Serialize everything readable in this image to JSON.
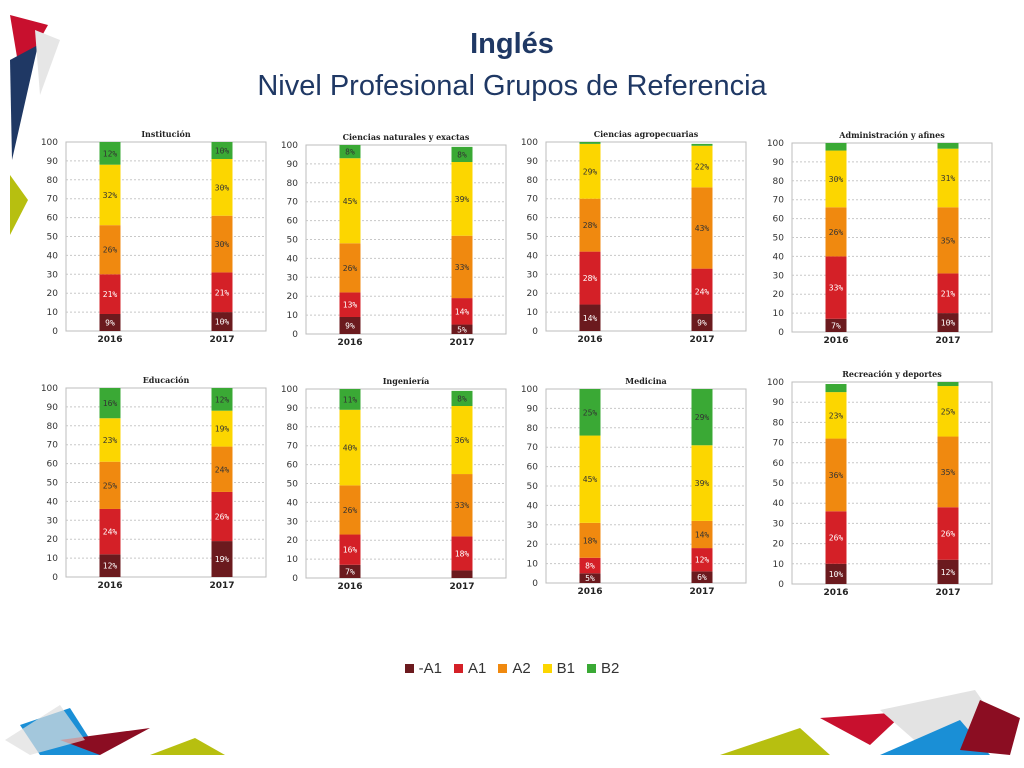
{
  "page": {
    "title": "Inglés",
    "subtitle": "Nivel Profesional Grupos de Referencia"
  },
  "colors": {
    "menos_a1": "#6b1a1e",
    "a1": "#d42027",
    "a2": "#f0890f",
    "b1": "#fcd600",
    "b2": "#3aa935"
  },
  "legend": [
    {
      "label": "-A1",
      "color": "#6b1a1e"
    },
    {
      "label": "A1",
      "color": "#d42027"
    },
    {
      "label": "A2",
      "color": "#f0890f"
    },
    {
      "label": "B1",
      "color": "#fcd600"
    },
    {
      "label": "B2",
      "color": "#3aa935"
    }
  ],
  "chart_data": [
    {
      "type": "bar",
      "stacked": true,
      "title": "Institución",
      "categories": [
        "2016",
        "2017"
      ],
      "ylim": [
        0,
        100
      ],
      "yticks": [
        "0",
        "10",
        "20",
        "30",
        "40",
        "50",
        "60",
        "70",
        "80",
        "90",
        "100"
      ],
      "series": [
        {
          "name": "-A1",
          "values": [
            9,
            10
          ],
          "labels": [
            "9%",
            "10%"
          ]
        },
        {
          "name": "A1",
          "values": [
            21,
            21
          ],
          "labels": [
            "21%",
            "21%"
          ]
        },
        {
          "name": "A2",
          "values": [
            26,
            30
          ],
          "labels": [
            "26%",
            "30%"
          ]
        },
        {
          "name": "B1",
          "values": [
            32,
            30
          ],
          "labels": [
            "32%",
            "30%"
          ]
        },
        {
          "name": "B2",
          "values": [
            12,
            10
          ],
          "labels": [
            "12%",
            "10%"
          ]
        }
      ]
    },
    {
      "type": "bar",
      "stacked": true,
      "title": "Ciencias naturales y exactas",
      "categories": [
        "2016",
        "2017"
      ],
      "ylim": [
        0,
        100
      ],
      "yticks": [
        "0",
        "10",
        "20",
        "30",
        "40",
        "50",
        "60",
        "70",
        "80",
        "90",
        "100"
      ],
      "series": [
        {
          "name": "-A1",
          "values": [
            9,
            5
          ],
          "labels": [
            "9%",
            "5%"
          ]
        },
        {
          "name": "A1",
          "values": [
            13,
            14
          ],
          "labels": [
            "13%",
            "14%"
          ]
        },
        {
          "name": "A2",
          "values": [
            26,
            33
          ],
          "labels": [
            "26%",
            "33%"
          ]
        },
        {
          "name": "B1",
          "values": [
            45,
            39
          ],
          "labels": [
            "45%",
            "39%"
          ]
        },
        {
          "name": "B2",
          "values": [
            8,
            8
          ],
          "labels": [
            "8%",
            "8%"
          ]
        }
      ]
    },
    {
      "type": "bar",
      "stacked": true,
      "title": "Ciencias agropecuarias",
      "categories": [
        "2016",
        "2017"
      ],
      "ylim": [
        0,
        100
      ],
      "yticks": [
        "0",
        "10",
        "20",
        "30",
        "40",
        "50",
        "60",
        "70",
        "80",
        "90",
        "100"
      ],
      "series": [
        {
          "name": "-A1",
          "values": [
            14,
            9
          ],
          "labels": [
            "14%",
            "9%"
          ]
        },
        {
          "name": "A1",
          "values": [
            28,
            24
          ],
          "labels": [
            "28%",
            "24%"
          ]
        },
        {
          "name": "A2",
          "values": [
            28,
            43
          ],
          "labels": [
            "28%",
            "43%"
          ]
        },
        {
          "name": "B1",
          "values": [
            29,
            22
          ],
          "labels": [
            "29%",
            "22%"
          ]
        },
        {
          "name": "B2",
          "values": [
            1,
            1
          ],
          "labels": [
            "",
            ""
          ]
        }
      ]
    },
    {
      "type": "bar",
      "stacked": true,
      "title": "Administración y afines",
      "categories": [
        "2016",
        "2017"
      ],
      "ylim": [
        0,
        100
      ],
      "yticks": [
        "0",
        "10",
        "20",
        "30",
        "40",
        "50",
        "60",
        "70",
        "80",
        "90",
        "100"
      ],
      "series": [
        {
          "name": "-A1",
          "values": [
            7,
            10
          ],
          "labels": [
            "7%",
            "10%"
          ]
        },
        {
          "name": "A1",
          "values": [
            33,
            21
          ],
          "labels": [
            "33%",
            "21%"
          ]
        },
        {
          "name": "A2",
          "values": [
            26,
            35
          ],
          "labels": [
            "26%",
            "35%"
          ]
        },
        {
          "name": "B1",
          "values": [
            30,
            31
          ],
          "labels": [
            "30%",
            "31%"
          ]
        },
        {
          "name": "B2",
          "values": [
            4,
            3
          ],
          "labels": [
            "",
            ""
          ]
        }
      ]
    },
    {
      "type": "bar",
      "stacked": true,
      "title": "Educación",
      "categories": [
        "2016",
        "2017"
      ],
      "ylim": [
        0,
        100
      ],
      "yticks": [
        "0",
        "10",
        "20",
        "30",
        "40",
        "50",
        "60",
        "70",
        "80",
        "90",
        "100"
      ],
      "series": [
        {
          "name": "-A1",
          "values": [
            12,
            19
          ],
          "labels": [
            "12%",
            "19%"
          ]
        },
        {
          "name": "A1",
          "values": [
            24,
            26
          ],
          "labels": [
            "24%",
            "26%"
          ]
        },
        {
          "name": "A2",
          "values": [
            25,
            24
          ],
          "labels": [
            "25%",
            "24%"
          ]
        },
        {
          "name": "B1",
          "values": [
            23,
            19
          ],
          "labels": [
            "23%",
            "19%"
          ]
        },
        {
          "name": "B2",
          "values": [
            16,
            12
          ],
          "labels": [
            "16%",
            "12%"
          ]
        }
      ]
    },
    {
      "type": "bar",
      "stacked": true,
      "title": "Ingeniería",
      "categories": [
        "2016",
        "2017"
      ],
      "ylim": [
        0,
        100
      ],
      "yticks": [
        "0",
        "10",
        "20",
        "30",
        "40",
        "50",
        "60",
        "70",
        "80",
        "90",
        "100"
      ],
      "series": [
        {
          "name": "-A1",
          "values": [
            7,
            4
          ],
          "labels": [
            "7%",
            ""
          ]
        },
        {
          "name": "A1",
          "values": [
            16,
            18
          ],
          "labels": [
            "16%",
            "18%"
          ]
        },
        {
          "name": "A2",
          "values": [
            26,
            33
          ],
          "labels": [
            "26%",
            "33%"
          ]
        },
        {
          "name": "B1",
          "values": [
            40,
            36
          ],
          "labels": [
            "40%",
            "36%"
          ]
        },
        {
          "name": "B2",
          "values": [
            11,
            8
          ],
          "labels": [
            "11%",
            "8%"
          ]
        }
      ]
    },
    {
      "type": "bar",
      "stacked": true,
      "title": "Medicina",
      "categories": [
        "2016",
        "2017"
      ],
      "ylim": [
        0,
        100
      ],
      "yticks": [
        "0",
        "10",
        "20",
        "30",
        "40",
        "50",
        "60",
        "70",
        "80",
        "90",
        "100"
      ],
      "series": [
        {
          "name": "-A1",
          "values": [
            5,
            6
          ],
          "labels": [
            "5%",
            "6%"
          ]
        },
        {
          "name": "A1",
          "values": [
            8,
            12
          ],
          "labels": [
            "8%",
            "12%"
          ]
        },
        {
          "name": "A2",
          "values": [
            18,
            14
          ],
          "labels": [
            "18%",
            "14%"
          ]
        },
        {
          "name": "B1",
          "values": [
            45,
            39
          ],
          "labels": [
            "45%",
            "39%"
          ]
        },
        {
          "name": "B2",
          "values": [
            25,
            29
          ],
          "labels": [
            "25%",
            "29%"
          ]
        }
      ]
    },
    {
      "type": "bar",
      "stacked": true,
      "title": "Recreación y deportes",
      "categories": [
        "2016",
        "2017"
      ],
      "ylim": [
        0,
        100
      ],
      "yticks": [
        "0",
        "10",
        "20",
        "30",
        "40",
        "50",
        "60",
        "70",
        "80",
        "90",
        "100"
      ],
      "series": [
        {
          "name": "-A1",
          "values": [
            10,
            12
          ],
          "labels": [
            "10%",
            "12%"
          ]
        },
        {
          "name": "A1",
          "values": [
            26,
            26
          ],
          "labels": [
            "26%",
            "26%"
          ]
        },
        {
          "name": "A2",
          "values": [
            36,
            35
          ],
          "labels": [
            "36%",
            "35%"
          ]
        },
        {
          "name": "B1",
          "values": [
            23,
            25
          ],
          "labels": [
            "23%",
            "25%"
          ]
        },
        {
          "name": "B2",
          "values": [
            4,
            2
          ],
          "labels": [
            "",
            ""
          ]
        }
      ]
    }
  ]
}
